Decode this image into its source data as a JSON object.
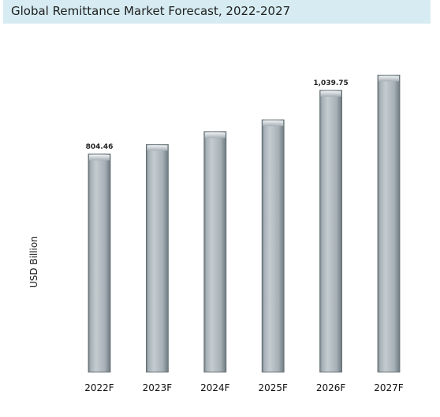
{
  "chart_data": {
    "type": "bar",
    "title": "Global Remittance Market Forecast, 2022-2027",
    "xlabel": "",
    "ylabel": "USD Billion",
    "categories": [
      "2022F",
      "2023F",
      "2024F",
      "2025F",
      "2026F",
      "2027F"
    ],
    "values": [
      804.46,
      840,
      887,
      931,
      1039.75,
      1096
    ],
    "data_labels": [
      "804.46",
      "",
      "",
      "",
      "1,039.75",
      ""
    ],
    "ylim": [
      0,
      1100
    ],
    "grid": false,
    "legend": "none",
    "colors": {
      "bar_light": "#dde3e7",
      "bar_mid": "#a6b0b6",
      "bar_dark": "#6e7a81",
      "title_background": "#d6ecf2"
    }
  }
}
